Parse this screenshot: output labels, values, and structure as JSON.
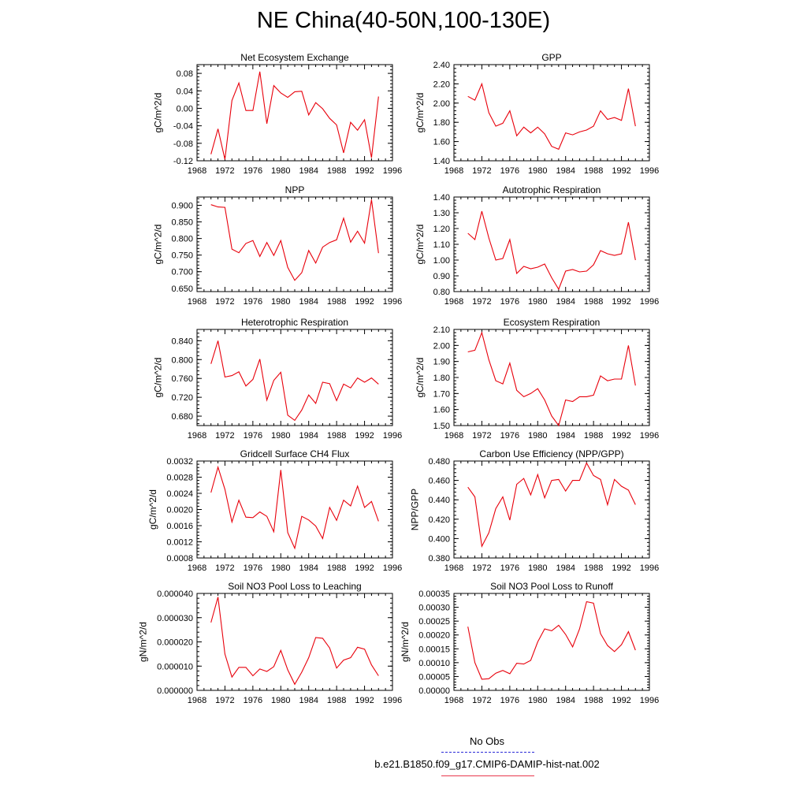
{
  "title": "NE China(40-50N,100-130E)",
  "legend": {
    "items": [
      {
        "label": "No Obs",
        "color": "#2a2ad8",
        "dash": "dashed"
      },
      {
        "label": "b.e21.B1850.f09_g17.CMIP6-DAMIP-hist-nat.002",
        "color": "#e8384d",
        "dash": "solid"
      }
    ]
  },
  "chart_data": [
    {
      "type": "line",
      "title": "Net Ecosystem Exchange",
      "ylabel": "gC/m^2/d",
      "xlim": [
        1968,
        1996
      ],
      "xticks": [
        "1968",
        "1972",
        "1976",
        "1980",
        "1984",
        "1988",
        "1992",
        "1996"
      ],
      "ylim": [
        -0.12,
        0.1
      ],
      "yticks": [
        "-0.12",
        "-0.08",
        "-0.04",
        "0.00",
        "0.04",
        "0.08"
      ],
      "series": [
        {
          "color": "#e8000b",
          "x": [
            1970,
            1971,
            1972,
            1973,
            1974,
            1975,
            1976,
            1977,
            1978,
            1979,
            1980,
            1981,
            1982,
            1983,
            1984,
            1985,
            1986,
            1987,
            1988,
            1989,
            1990,
            1991,
            1992,
            1993,
            1994
          ],
          "y": [
            -0.105,
            -0.047,
            -0.117,
            0.018,
            0.058,
            -0.005,
            -0.005,
            0.084,
            -0.035,
            0.052,
            0.035,
            0.025,
            0.038,
            0.039,
            -0.015,
            0.013,
            -0.001,
            -0.023,
            -0.038,
            -0.102,
            -0.032,
            -0.05,
            -0.026,
            -0.113,
            0.027
          ]
        }
      ]
    },
    {
      "type": "line",
      "title": "GPP",
      "ylabel": "gC/m^2/d",
      "xlim": [
        1968,
        1996
      ],
      "xticks": [
        "1968",
        "1972",
        "1976",
        "1980",
        "1984",
        "1988",
        "1992",
        "1996"
      ],
      "ylim": [
        1.4,
        2.4
      ],
      "yticks": [
        "1.40",
        "1.60",
        "1.80",
        "2.00",
        "2.20",
        "2.40"
      ],
      "series": [
        {
          "color": "#e8000b",
          "x": [
            1970,
            1971,
            1972,
            1973,
            1974,
            1975,
            1976,
            1977,
            1978,
            1979,
            1980,
            1981,
            1982,
            1983,
            1984,
            1985,
            1986,
            1987,
            1988,
            1989,
            1990,
            1991,
            1992,
            1993,
            1994
          ],
          "y": [
            2.07,
            2.03,
            2.2,
            1.9,
            1.76,
            1.79,
            1.92,
            1.66,
            1.75,
            1.69,
            1.75,
            1.68,
            1.55,
            1.52,
            1.69,
            1.67,
            1.7,
            1.72,
            1.76,
            1.92,
            1.83,
            1.85,
            1.82,
            2.15,
            1.76
          ]
        }
      ]
    },
    {
      "type": "line",
      "title": "NPP",
      "ylabel": "gC/m^2/d",
      "xlim": [
        1968,
        1996
      ],
      "xticks": [
        "1968",
        "1972",
        "1976",
        "1980",
        "1984",
        "1988",
        "1992",
        "1996"
      ],
      "ylim": [
        0.64,
        0.925
      ],
      "yticks": [
        "0.650",
        "0.700",
        "0.750",
        "0.800",
        "0.850",
        "0.900"
      ],
      "series": [
        {
          "color": "#e8000b",
          "x": [
            1970,
            1971,
            1972,
            1973,
            1974,
            1975,
            1976,
            1977,
            1978,
            1979,
            1980,
            1981,
            1982,
            1983,
            1984,
            1985,
            1986,
            1987,
            1988,
            1989,
            1990,
            1991,
            1992,
            1993,
            1994
          ],
          "y": [
            0.902,
            0.895,
            0.894,
            0.768,
            0.757,
            0.785,
            0.794,
            0.746,
            0.788,
            0.749,
            0.794,
            0.713,
            0.674,
            0.697,
            0.764,
            0.726,
            0.774,
            0.788,
            0.796,
            0.861,
            0.789,
            0.822,
            0.786,
            0.917,
            0.756
          ]
        }
      ]
    },
    {
      "type": "line",
      "title": "Autotrophic Respiration",
      "ylabel": "gC/m^2/d",
      "xlim": [
        1968,
        1996
      ],
      "xticks": [
        "1968",
        "1972",
        "1976",
        "1980",
        "1984",
        "1988",
        "1992",
        "1996"
      ],
      "ylim": [
        0.8,
        1.4
      ],
      "yticks": [
        "0.80",
        "0.90",
        "1.00",
        "1.10",
        "1.20",
        "1.30",
        "1.40"
      ],
      "series": [
        {
          "color": "#e8000b",
          "x": [
            1970,
            1971,
            1972,
            1973,
            1974,
            1975,
            1976,
            1977,
            1978,
            1979,
            1980,
            1981,
            1982,
            1983,
            1984,
            1985,
            1986,
            1987,
            1988,
            1989,
            1990,
            1991,
            1992,
            1993,
            1994
          ],
          "y": [
            1.17,
            1.13,
            1.31,
            1.14,
            1.0,
            1.01,
            1.13,
            0.915,
            0.96,
            0.945,
            0.955,
            0.975,
            0.888,
            0.815,
            0.93,
            0.94,
            0.925,
            0.93,
            0.97,
            1.06,
            1.04,
            1.03,
            1.04,
            1.24,
            1.0
          ]
        }
      ]
    },
    {
      "type": "line",
      "title": "Heterotrophic Respiration",
      "ylabel": "gC/m^2/d",
      "xlim": [
        1968,
        1996
      ],
      "xticks": [
        "1968",
        "1972",
        "1976",
        "1980",
        "1984",
        "1988",
        "1992",
        "1996"
      ],
      "ylim": [
        0.66,
        0.864
      ],
      "yticks": [
        "0.680",
        "0.720",
        "0.760",
        "0.800",
        "0.840"
      ],
      "series": [
        {
          "color": "#e8000b",
          "x": [
            1970,
            1971,
            1972,
            1973,
            1974,
            1975,
            1976,
            1977,
            1978,
            1979,
            1980,
            1981,
            1982,
            1983,
            1984,
            1985,
            1986,
            1987,
            1988,
            1989,
            1990,
            1991,
            1992,
            1993,
            1994
          ],
          "y": [
            0.791,
            0.84,
            0.763,
            0.766,
            0.774,
            0.744,
            0.758,
            0.801,
            0.714,
            0.756,
            0.773,
            0.682,
            0.671,
            0.693,
            0.725,
            0.707,
            0.752,
            0.749,
            0.713,
            0.748,
            0.74,
            0.761,
            0.752,
            0.761,
            0.748
          ]
        }
      ]
    },
    {
      "type": "line",
      "title": "Ecosystem Respiration",
      "ylabel": "gC/m^2/d",
      "xlim": [
        1968,
        1996
      ],
      "xticks": [
        "1968",
        "1972",
        "1976",
        "1980",
        "1984",
        "1988",
        "1992",
        "1996"
      ],
      "ylim": [
        1.5,
        2.1
      ],
      "yticks": [
        "1.50",
        "1.60",
        "1.70",
        "1.80",
        "1.90",
        "2.00",
        "2.10"
      ],
      "series": [
        {
          "color": "#e8000b",
          "x": [
            1970,
            1971,
            1972,
            1973,
            1974,
            1975,
            1976,
            1977,
            1978,
            1979,
            1980,
            1981,
            1982,
            1983,
            1984,
            1985,
            1986,
            1987,
            1988,
            1989,
            1990,
            1991,
            1992,
            1993,
            1994
          ],
          "y": [
            1.96,
            1.97,
            2.08,
            1.91,
            1.78,
            1.76,
            1.89,
            1.72,
            1.68,
            1.7,
            1.73,
            1.66,
            1.56,
            1.5,
            1.66,
            1.65,
            1.68,
            1.68,
            1.69,
            1.81,
            1.78,
            1.79,
            1.79,
            2.0,
            1.75
          ]
        }
      ]
    },
    {
      "type": "line",
      "title": "Gridcell Surface CH4 Flux",
      "ylabel": "gC/m^2/d",
      "xlim": [
        1968,
        1996
      ],
      "xticks": [
        "1968",
        "1972",
        "1976",
        "1980",
        "1984",
        "1988",
        "1992",
        "1996"
      ],
      "ylim": [
        0.0008,
        0.0032
      ],
      "yticks": [
        "0.0008",
        "0.0012",
        "0.0016",
        "0.0020",
        "0.0024",
        "0.0028",
        "0.0032"
      ],
      "series": [
        {
          "color": "#e8000b",
          "x": [
            1970,
            1971,
            1972,
            1973,
            1974,
            1975,
            1976,
            1977,
            1978,
            1979,
            1980,
            1981,
            1982,
            1983,
            1984,
            1985,
            1986,
            1987,
            1988,
            1989,
            1990,
            1991,
            1992,
            1993,
            1994
          ],
          "y": [
            0.00242,
            0.00305,
            0.0025,
            0.00169,
            0.00223,
            0.00181,
            0.0018,
            0.00194,
            0.00183,
            0.00145,
            0.00298,
            0.00143,
            0.00104,
            0.00183,
            0.00174,
            0.00159,
            0.00128,
            0.00205,
            0.00173,
            0.00223,
            0.00209,
            0.00258,
            0.00205,
            0.0022,
            0.00171
          ]
        }
      ]
    },
    {
      "type": "line",
      "title": "Carbon Use Efficiency (NPP/GPP)",
      "ylabel": "NPP/GPP",
      "xlim": [
        1968,
        1996
      ],
      "xticks": [
        "1968",
        "1972",
        "1976",
        "1980",
        "1984",
        "1988",
        "1992",
        "1996"
      ],
      "ylim": [
        0.38,
        0.48
      ],
      "yticks": [
        "0.380",
        "0.400",
        "0.420",
        "0.440",
        "0.460",
        "0.480"
      ],
      "series": [
        {
          "color": "#e8000b",
          "x": [
            1970,
            1971,
            1972,
            1973,
            1974,
            1975,
            1976,
            1977,
            1978,
            1979,
            1980,
            1981,
            1982,
            1983,
            1984,
            1985,
            1986,
            1987,
            1988,
            1989,
            1990,
            1991,
            1992,
            1993,
            1994
          ],
          "y": [
            0.453,
            0.443,
            0.392,
            0.406,
            0.431,
            0.443,
            0.419,
            0.456,
            0.462,
            0.445,
            0.466,
            0.442,
            0.46,
            0.461,
            0.449,
            0.46,
            0.46,
            0.478,
            0.465,
            0.461,
            0.435,
            0.461,
            0.454,
            0.45,
            0.435
          ]
        }
      ]
    },
    {
      "type": "line",
      "title": "Soil NO3 Pool Loss to Leaching",
      "ylabel": "gN/m^2/d",
      "xlim": [
        1968,
        1996
      ],
      "xticks": [
        "1968",
        "1972",
        "1976",
        "1980",
        "1984",
        "1988",
        "1992",
        "1996"
      ],
      "ylim": [
        0.0,
        4e-05
      ],
      "yticks": [
        "0.000000",
        "0.000010",
        "0.000020",
        "0.000030",
        "0.000040"
      ],
      "series": [
        {
          "color": "#e8000b",
          "x": [
            1970,
            1971,
            1972,
            1973,
            1974,
            1975,
            1976,
            1977,
            1978,
            1979,
            1980,
            1981,
            1982,
            1983,
            1984,
            1985,
            1986,
            1987,
            1988,
            1989,
            1990,
            1991,
            1992,
            1993,
            1994
          ],
          "y": [
            2.8e-05,
            3.85e-05,
            1.5e-05,
            5.5e-06,
            9.5e-06,
            9.5e-06,
            6e-06,
            8.8e-06,
            7.8e-06,
            9.8e-06,
            1.65e-05,
            8.5e-06,
            2.5e-06,
            7.5e-06,
            1.35e-05,
            2.18e-05,
            2.15e-05,
            1.75e-05,
            9.2e-06,
            1.25e-05,
            1.35e-05,
            1.78e-05,
            1.7e-05,
            1.05e-05,
            6e-06
          ]
        }
      ]
    },
    {
      "type": "line",
      "title": "Soil NO3 Pool Loss to Runoff",
      "ylabel": "gN/m^2/d",
      "xlim": [
        1968,
        1996
      ],
      "xticks": [
        "1968",
        "1972",
        "1976",
        "1980",
        "1984",
        "1988",
        "1992",
        "1996"
      ],
      "ylim": [
        0.0,
        0.00035
      ],
      "yticks": [
        "0.00000",
        "0.00005",
        "0.00010",
        "0.00015",
        "0.00020",
        "0.00025",
        "0.00030",
        "0.00035"
      ],
      "series": [
        {
          "color": "#e8000b",
          "x": [
            1970,
            1971,
            1972,
            1973,
            1974,
            1975,
            1976,
            1977,
            1978,
            1979,
            1980,
            1981,
            1982,
            1983,
            1984,
            1985,
            1986,
            1987,
            1988,
            1989,
            1990,
            1991,
            1992,
            1993,
            1994
          ],
          "y": [
            0.00023,
            0.0001,
            4e-05,
            4.2e-05,
            6.2e-05,
            7.2e-05,
            6e-05,
            9.8e-05,
            9.5e-05,
            0.000108,
            0.000175,
            0.000222,
            0.000215,
            0.000235,
            0.000202,
            0.000157,
            0.000222,
            0.00032,
            0.000315,
            0.000205,
            0.000162,
            0.00014,
            0.000165,
            0.000212,
            0.000145
          ]
        }
      ]
    }
  ]
}
